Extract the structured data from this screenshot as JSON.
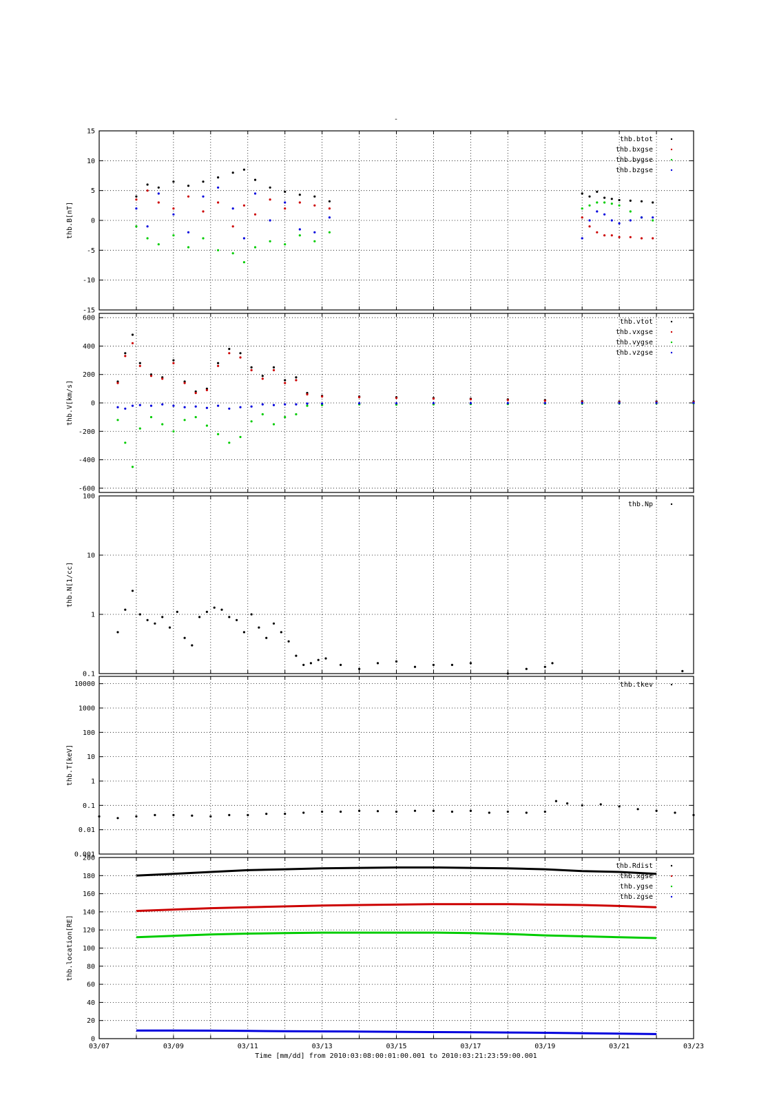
{
  "figure": {
    "title": "-",
    "xlabel": "Time [mm/dd]  from 2010:03:08:00:01:00.001  to  2010:03:21:23:59:00.001",
    "x_ticks": [
      "03/07",
      "03/09",
      "03/11",
      "03/13",
      "03/15",
      "03/17",
      "03/19",
      "03/21",
      "03/23"
    ]
  },
  "chart_data": [
    {
      "type": "scatter",
      "ylabel": "thb.B[nT]",
      "yscale": "linear",
      "ylim": [
        -15,
        15
      ],
      "y_ticks": [
        "15",
        "10",
        "5",
        "0",
        "-5",
        "-10",
        "-15"
      ],
      "y_tick_values": [
        15,
        10,
        5,
        0,
        -5,
        -10,
        -15
      ],
      "x_range_days": [
        7,
        23
      ],
      "grid": true,
      "legend_position": "top-right",
      "series": [
        {
          "name": "thb.btot",
          "color": "#000000",
          "x": [
            8.0,
            8.3,
            8.6,
            9.0,
            9.4,
            9.8,
            10.2,
            10.6,
            10.9,
            11.2,
            11.6,
            12.0,
            12.4,
            12.8,
            13.2
          ],
          "y": [
            4.0,
            6.0,
            5.5,
            6.5,
            5.8,
            6.5,
            7.2,
            8.0,
            8.5,
            6.8,
            5.5,
            4.8,
            4.3,
            4.0,
            3.2
          ]
        },
        {
          "name": "thb.btot",
          "color": "#000000",
          "x": [
            20.0,
            20.2,
            20.4,
            20.6,
            20.8,
            21.0,
            21.3,
            21.6,
            21.9
          ],
          "y": [
            4.5,
            4.0,
            4.8,
            3.8,
            3.6,
            3.4,
            3.3,
            3.2,
            3.0
          ]
        },
        {
          "name": "thb.bxgse",
          "color": "#cc0000",
          "x": [
            8.0,
            8.3,
            8.6,
            9.0,
            9.4,
            9.8,
            10.2,
            10.6,
            10.9,
            11.2,
            11.6,
            12.0,
            12.4,
            12.8,
            13.2
          ],
          "y": [
            3.5,
            5.0,
            3.0,
            2.0,
            4.0,
            1.5,
            3.0,
            -1.0,
            2.5,
            1.0,
            3.5,
            2.0,
            3.0,
            2.5,
            2.0
          ]
        },
        {
          "name": "thb.bxgse",
          "color": "#cc0000",
          "x": [
            20.0,
            20.2,
            20.4,
            20.6,
            20.8,
            21.0,
            21.3,
            21.6,
            21.9
          ],
          "y": [
            0.5,
            -1.0,
            -2.0,
            -2.5,
            -2.5,
            -2.8,
            -2.8,
            -3.0,
            -3.0
          ]
        },
        {
          "name": "thb.bygse",
          "color": "#00cc00",
          "x": [
            8.0,
            8.3,
            8.6,
            9.0,
            9.4,
            9.8,
            10.2,
            10.6,
            10.9,
            11.2,
            11.6,
            12.0,
            12.4,
            12.8,
            13.2
          ],
          "y": [
            -1.0,
            -3.0,
            -4.0,
            -2.5,
            -4.5,
            -3.0,
            -5.0,
            -5.5,
            -7.0,
            -4.5,
            -3.5,
            -4.0,
            -2.5,
            -3.5,
            -2.0
          ]
        },
        {
          "name": "thb.bygse",
          "color": "#00cc00",
          "x": [
            20.0,
            20.2,
            20.4,
            20.6,
            20.8,
            21.0,
            21.3,
            21.6,
            21.9
          ],
          "y": [
            2.0,
            2.5,
            3.0,
            3.0,
            2.8,
            2.5,
            1.5,
            0.5,
            0.0
          ]
        },
        {
          "name": "thb.bzgse",
          "color": "#0000dd",
          "x": [
            8.0,
            8.3,
            8.6,
            9.0,
            9.4,
            9.8,
            10.2,
            10.6,
            10.9,
            11.2,
            11.6,
            12.0,
            12.4,
            12.8,
            13.2
          ],
          "y": [
            2.0,
            -1.0,
            4.5,
            1.0,
            -2.0,
            4.0,
            5.5,
            2.0,
            -3.0,
            4.5,
            0.0,
            3.0,
            -1.5,
            -2.0,
            0.5
          ]
        },
        {
          "name": "thb.bzgse",
          "color": "#0000dd",
          "x": [
            20.0,
            20.2,
            20.4,
            20.6,
            20.8,
            21.0,
            21.3,
            21.6,
            21.9
          ],
          "y": [
            -3.0,
            0.0,
            1.5,
            1.0,
            0.0,
            -0.5,
            0.0,
            0.5,
            0.5
          ]
        }
      ]
    },
    {
      "type": "scatter",
      "ylabel": "thb.V[km/s]",
      "yscale": "linear",
      "ylim": [
        -630,
        630
      ],
      "y_ticks": [
        "600",
        "400",
        "200",
        "0",
        "-200",
        "-400",
        "-600"
      ],
      "y_tick_values": [
        600,
        400,
        200,
        0,
        -200,
        -400,
        -600
      ],
      "x_range_days": [
        7,
        23
      ],
      "grid": true,
      "legend_position": "top-right",
      "series": [
        {
          "name": "thb.vtot",
          "color": "#000000",
          "x": [
            7.5,
            7.7,
            7.9,
            8.1,
            8.4,
            8.7,
            9.0,
            9.3,
            9.6,
            9.9,
            10.2,
            10.5,
            10.8,
            11.1,
            11.4,
            11.7,
            12.0,
            12.3,
            12.6,
            13.0,
            14.0,
            15.0,
            16.0,
            17.0,
            18.0,
            19.0,
            20.0,
            21.0,
            22.0,
            23.0
          ],
          "y": [
            150,
            350,
            480,
            280,
            200,
            180,
            300,
            150,
            80,
            100,
            280,
            380,
            350,
            250,
            190,
            250,
            160,
            180,
            70,
            50,
            45,
            40,
            35,
            30,
            25,
            20,
            12,
            10,
            10,
            10
          ]
        },
        {
          "name": "thb.vxgse",
          "color": "#cc0000",
          "x": [
            7.5,
            7.7,
            7.9,
            8.1,
            8.4,
            8.7,
            9.0,
            9.3,
            9.6,
            9.9,
            10.2,
            10.5,
            10.8,
            11.1,
            11.4,
            11.7,
            12.0,
            12.3,
            12.6,
            13.0,
            14.0,
            15.0,
            16.0,
            17.0,
            18.0,
            19.0,
            20.0,
            21.0,
            22.0,
            23.0
          ],
          "y": [
            140,
            330,
            420,
            260,
            190,
            170,
            280,
            140,
            70,
            90,
            260,
            350,
            320,
            230,
            170,
            230,
            140,
            160,
            60,
            45,
            40,
            35,
            30,
            25,
            20,
            15,
            8,
            6,
            6,
            6
          ]
        },
        {
          "name": "thb.vygse",
          "color": "#00cc00",
          "x": [
            7.5,
            7.7,
            7.9,
            8.1,
            8.4,
            8.7,
            9.0,
            9.3,
            9.6,
            9.9,
            10.2,
            10.5,
            10.8,
            11.1,
            11.4,
            11.7,
            12.0,
            12.3,
            12.6,
            13.0,
            14.0,
            15.0,
            16.0,
            17.0,
            18.0,
            19.0,
            20.0,
            21.0,
            22.0,
            23.0
          ],
          "y": [
            -120,
            -280,
            -450,
            -180,
            -100,
            -150,
            -200,
            -120,
            -100,
            -160,
            -220,
            -280,
            -240,
            -130,
            -80,
            -150,
            -100,
            -80,
            -20,
            -15,
            -10,
            -12,
            -10,
            -8,
            -8,
            -5,
            -5,
            -4,
            -4,
            -4
          ]
        },
        {
          "name": "thb.vzgse",
          "color": "#0000dd",
          "x": [
            7.5,
            7.7,
            7.9,
            8.1,
            8.4,
            8.7,
            9.0,
            9.3,
            9.6,
            9.9,
            10.2,
            10.5,
            10.8,
            11.1,
            11.4,
            11.7,
            12.0,
            12.3,
            12.6,
            13.0,
            14.0,
            15.0,
            16.0,
            17.0,
            18.0,
            19.0,
            20.0,
            21.0,
            22.0,
            23.0
          ],
          "y": [
            -30,
            -40,
            -20,
            -15,
            -20,
            -10,
            -20,
            -30,
            -25,
            -35,
            -20,
            -40,
            -30,
            -25,
            -10,
            -15,
            -10,
            -10,
            -5,
            -5,
            -3,
            -3,
            -2,
            -2,
            -2,
            -1,
            0,
            0,
            0,
            0
          ]
        }
      ]
    },
    {
      "type": "scatter",
      "ylabel": "thb.N[1/cc]",
      "yscale": "log",
      "ylim": [
        0.1,
        100
      ],
      "y_ticks": [
        "100",
        "10",
        "1",
        "0.1"
      ],
      "y_tick_values": [
        100,
        10,
        1,
        0.1
      ],
      "x_range_days": [
        7,
        23
      ],
      "grid": true,
      "legend_position": "top-right",
      "series": [
        {
          "name": "thb.Np",
          "color": "#000000",
          "x": [
            7.5,
            7.7,
            7.9,
            8.1,
            8.3,
            8.5,
            8.7,
            8.9,
            9.1,
            9.3,
            9.5,
            9.7,
            9.9,
            10.1,
            10.3,
            10.5,
            10.7,
            10.9,
            11.1,
            11.3,
            11.5,
            11.7,
            11.9,
            12.1,
            12.3,
            12.5,
            12.7,
            12.9,
            13.1,
            13.5,
            14.0,
            14.5,
            15.0,
            15.5,
            16.0,
            16.5,
            17.0,
            18.0,
            18.5,
            19.0,
            19.2,
            22.7
          ],
          "y": [
            0.5,
            1.2,
            2.5,
            1.0,
            0.8,
            0.7,
            0.9,
            0.6,
            1.1,
            0.4,
            0.3,
            0.9,
            1.1,
            1.3,
            1.2,
            0.9,
            0.8,
            0.5,
            1.0,
            0.6,
            0.4,
            0.7,
            0.5,
            0.35,
            0.2,
            0.14,
            0.15,
            0.17,
            0.18,
            0.14,
            0.12,
            0.15,
            0.16,
            0.13,
            0.14,
            0.14,
            0.15,
            0.1,
            0.12,
            0.13,
            0.15,
            0.11
          ]
        }
      ]
    },
    {
      "type": "scatter",
      "ylabel": "thb.T[keV]",
      "yscale": "log",
      "ylim": [
        0.001,
        20000
      ],
      "y_ticks": [
        "10000",
        "1000",
        "100",
        "10",
        "1",
        "0.1",
        "0.01",
        "0.001"
      ],
      "y_tick_values": [
        10000,
        1000,
        100,
        10,
        1,
        0.1,
        0.01,
        0.001
      ],
      "x_range_days": [
        7,
        23
      ],
      "grid": true,
      "legend_position": "top-right",
      "series": [
        {
          "name": "thb.tkev",
          "color": "#000000",
          "x": [
            7.0,
            7.5,
            8.0,
            8.5,
            9.0,
            9.5,
            10.0,
            10.5,
            11.0,
            11.5,
            12.0,
            12.5,
            13.0,
            13.5,
            14.0,
            14.5,
            15.0,
            15.5,
            16.0,
            16.5,
            17.0,
            17.5,
            18.0,
            18.5,
            19.0,
            19.3,
            19.6,
            20.0,
            20.5,
            21.0,
            21.5,
            22.0,
            22.5,
            23.0
          ],
          "y": [
            0.035,
            0.03,
            0.035,
            0.04,
            0.04,
            0.038,
            0.035,
            0.04,
            0.04,
            0.045,
            0.045,
            0.05,
            0.055,
            0.055,
            0.06,
            0.058,
            0.055,
            0.06,
            0.06,
            0.055,
            0.06,
            0.05,
            0.055,
            0.05,
            0.055,
            0.15,
            0.12,
            0.1,
            0.11,
            0.09,
            0.07,
            0.06,
            0.05,
            0.04
          ]
        }
      ]
    },
    {
      "type": "line",
      "ylabel": "thb.location[RE]",
      "yscale": "linear",
      "ylim": [
        0,
        200
      ],
      "y_ticks": [
        "200",
        "180",
        "160",
        "140",
        "120",
        "100",
        "80",
        "60",
        "40",
        "20",
        "0"
      ],
      "y_tick_values": [
        200,
        180,
        160,
        140,
        120,
        100,
        80,
        60,
        40,
        20,
        0
      ],
      "x_range_days": [
        7,
        23
      ],
      "grid": true,
      "legend_position": "top-right",
      "series": [
        {
          "name": "thb.Rdist",
          "color": "#000000",
          "x": [
            8,
            9,
            10,
            11,
            12,
            13,
            14,
            15,
            16,
            17,
            18,
            19,
            20,
            21,
            22
          ],
          "y": [
            180,
            182,
            184,
            186,
            187,
            188,
            188.5,
            189,
            189,
            188.5,
            188,
            187,
            185,
            184,
            182
          ]
        },
        {
          "name": "thb.xgse",
          "color": "#cc0000",
          "x": [
            8,
            9,
            10,
            11,
            12,
            13,
            14,
            15,
            16,
            17,
            18,
            19,
            20,
            21,
            22
          ],
          "y": [
            141,
            142.5,
            144,
            145,
            146,
            147,
            147.5,
            148,
            148.5,
            148.5,
            148.5,
            148,
            147.5,
            146.5,
            145
          ]
        },
        {
          "name": "thb.ygse",
          "color": "#00cc00",
          "x": [
            8,
            9,
            10,
            11,
            12,
            13,
            14,
            15,
            16,
            17,
            18,
            19,
            20,
            21,
            22
          ],
          "y": [
            112,
            113.5,
            115,
            116,
            116.5,
            117,
            117,
            117,
            117,
            116.5,
            115.5,
            114,
            113,
            112,
            111
          ]
        },
        {
          "name": "thb.zgse",
          "color": "#0000dd",
          "x": [
            8,
            9,
            10,
            11,
            12,
            13,
            14,
            15,
            16,
            17,
            18,
            19,
            20,
            21,
            22
          ],
          "y": [
            9,
            9,
            8.8,
            8.5,
            8.2,
            8,
            7.8,
            7.5,
            7.2,
            7,
            6.8,
            6.5,
            6,
            5.5,
            5
          ]
        }
      ]
    }
  ]
}
